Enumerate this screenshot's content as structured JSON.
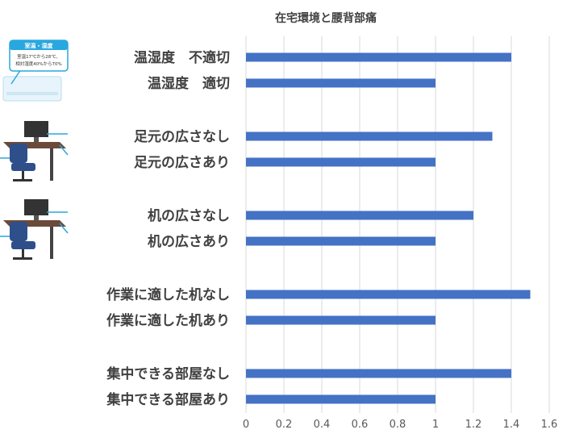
{
  "chart_data": {
    "type": "bar",
    "orientation": "horizontal",
    "title": "在宅環境と腰背部痛",
    "categories": [
      "温湿度　不適切",
      "温湿度　適切",
      "足元の広さなし",
      "足元の広さあり",
      "机の広さなし",
      "机の広さあり",
      "作業に適した机なし",
      "作業に適した机あり",
      "集中できる部屋なし",
      "集中できる部屋あり"
    ],
    "values": [
      1.4,
      1.0,
      1.3,
      1.0,
      1.2,
      1.0,
      1.5,
      1.0,
      1.4,
      1.0
    ],
    "xlim": [
      0,
      1.6
    ],
    "x_ticks": [
      "0",
      "0.2",
      "0.4",
      "0.6",
      "0.8",
      "1",
      "1.2",
      "1.4",
      "1.6"
    ],
    "grid": true,
    "xlabel": "",
    "ylabel": "",
    "bar_color": "#4472c4"
  },
  "illustrations": {
    "aircon_header": "室温・湿度",
    "aircon_line1": "室温17℃から28℃、",
    "aircon_line2": "相対湿度40%から70%"
  }
}
